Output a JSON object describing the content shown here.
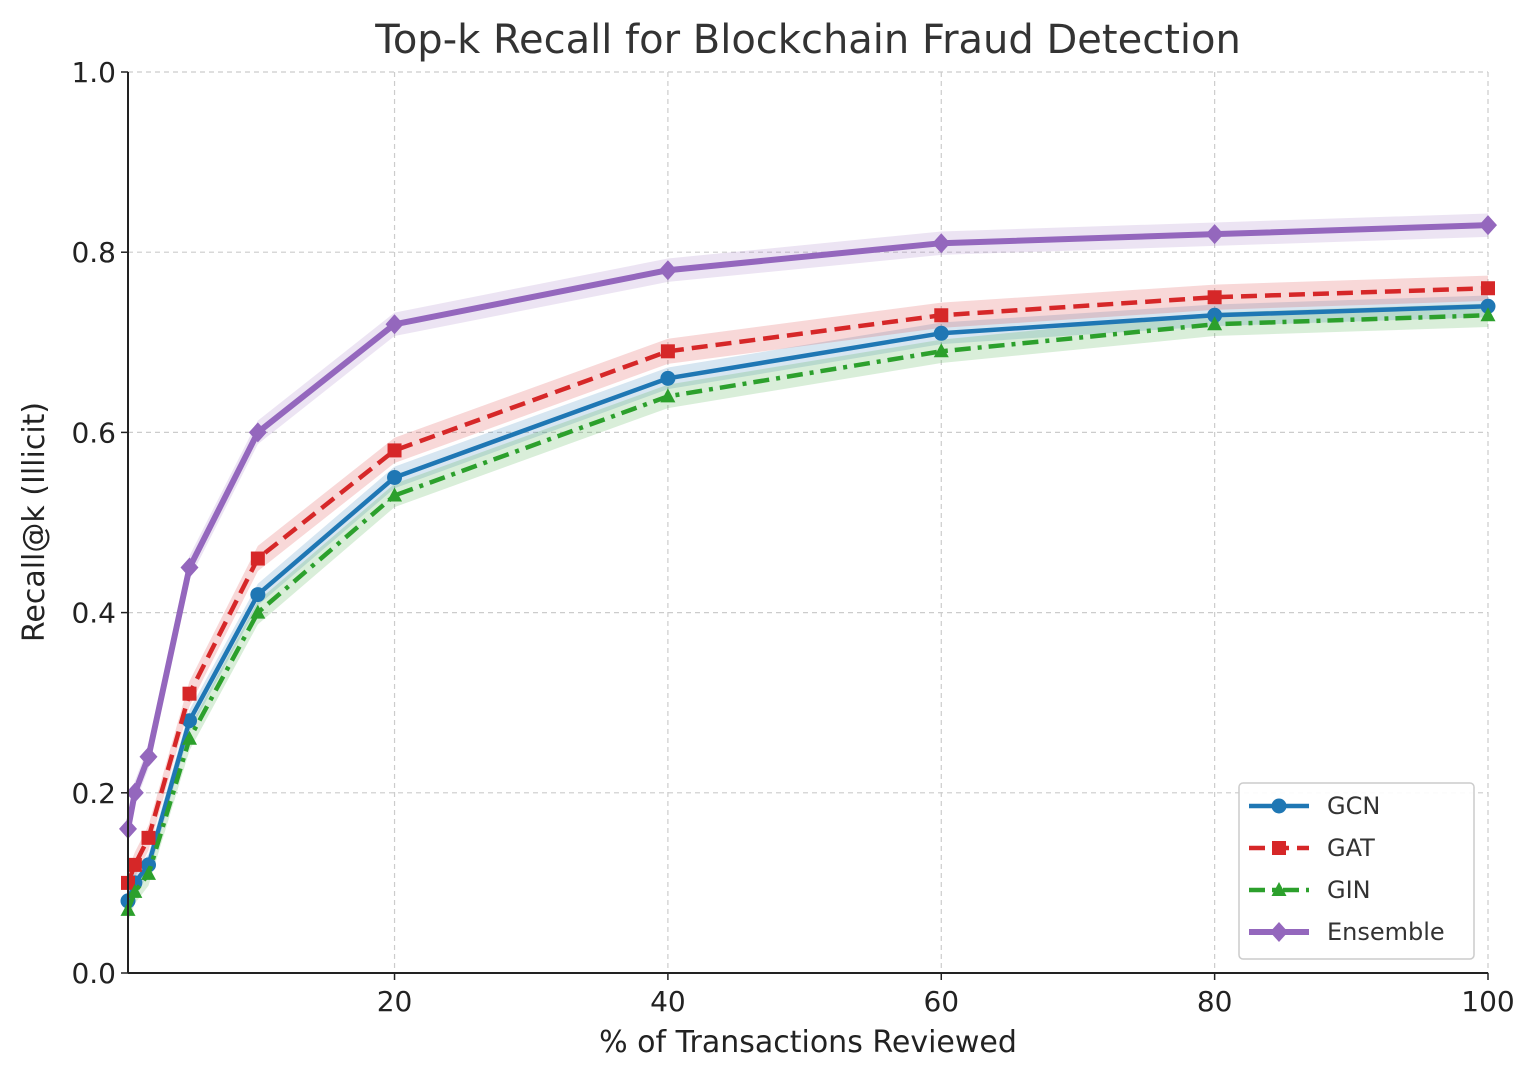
{
  "chart_data": {
    "type": "line",
    "title": "Top-k Recall for Blockchain Fraud Detection",
    "xlabel": "% of Transactions Reviewed",
    "ylabel": "Recall@k (Illicit)",
    "xlim": [
      0.5,
      100
    ],
    "ylim": [
      0,
      1.0
    ],
    "x_ticks": [
      20,
      40,
      60,
      80,
      100
    ],
    "x_tick_labels": [
      "20",
      "40",
      "60",
      "80",
      "100"
    ],
    "y_ticks": [
      0.0,
      0.2,
      0.4,
      0.6,
      0.8,
      1.0
    ],
    "y_tick_labels": [
      "0.0",
      "0.2",
      "0.4",
      "0.6",
      "0.8",
      "1.0"
    ],
    "grid": true,
    "legend_position": "bottom-right",
    "x": [
      0.5,
      1,
      2,
      5,
      10,
      20,
      40,
      60,
      80,
      100
    ],
    "series": [
      {
        "name": "GCN",
        "color": "#1f77b4",
        "line_style": "solid",
        "marker": "circle",
        "values": [
          0.08,
          0.1,
          0.12,
          0.28,
          0.42,
          0.55,
          0.66,
          0.71,
          0.73,
          0.74
        ],
        "band": 0.012
      },
      {
        "name": "GAT",
        "color": "#d62728",
        "line_style": "dashed",
        "marker": "square",
        "values": [
          0.1,
          0.12,
          0.15,
          0.31,
          0.46,
          0.58,
          0.69,
          0.73,
          0.75,
          0.76
        ],
        "band": 0.014
      },
      {
        "name": "GIN",
        "color": "#2ca02c",
        "line_style": "dashdot",
        "marker": "triangle",
        "values": [
          0.07,
          0.09,
          0.11,
          0.26,
          0.4,
          0.53,
          0.64,
          0.69,
          0.72,
          0.73
        ],
        "band": 0.013
      },
      {
        "name": "Ensemble",
        "color": "#9467bd",
        "line_style": "solid",
        "marker": "diamond",
        "values": [
          0.16,
          0.2,
          0.24,
          0.45,
          0.6,
          0.72,
          0.78,
          0.81,
          0.82,
          0.83
        ],
        "band": 0.013
      }
    ]
  }
}
